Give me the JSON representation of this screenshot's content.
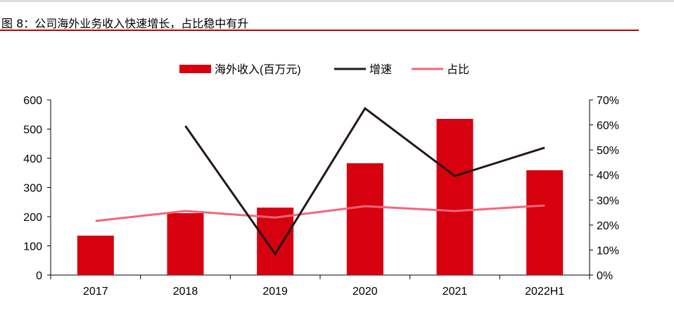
{
  "title": "图 8：公司海外业务收入快速增长，占比稳中有升",
  "chart_data": {
    "type": "bar+line",
    "categories": [
      "2017",
      "2018",
      "2019",
      "2020",
      "2021",
      "2022H1"
    ],
    "series": [
      {
        "name": "海外收入(百万元)",
        "type": "bar",
        "axis": "left",
        "color": "#d7000f",
        "values": [
          135,
          212,
          231,
          383,
          535,
          359
        ]
      },
      {
        "name": "增速",
        "type": "line",
        "axis": "right",
        "color": "#231815",
        "values": [
          null,
          59.6,
          8.4,
          66.6,
          39.6,
          50.9
        ]
      },
      {
        "name": "占比",
        "type": "line",
        "axis": "right",
        "color": "#f4667a",
        "values": [
          21.6,
          25.6,
          23.0,
          27.5,
          25.6,
          27.8
        ]
      }
    ],
    "left_axis": {
      "ylim": [
        0,
        600
      ],
      "ticks": [
        "0",
        "100",
        "200",
        "300",
        "400",
        "500",
        "600"
      ]
    },
    "right_axis": {
      "ylim": [
        0,
        70
      ],
      "ticks": [
        "0%",
        "10%",
        "20%",
        "30%",
        "40%",
        "50%",
        "60%",
        "70%"
      ]
    },
    "legend": "top",
    "grid": false
  }
}
